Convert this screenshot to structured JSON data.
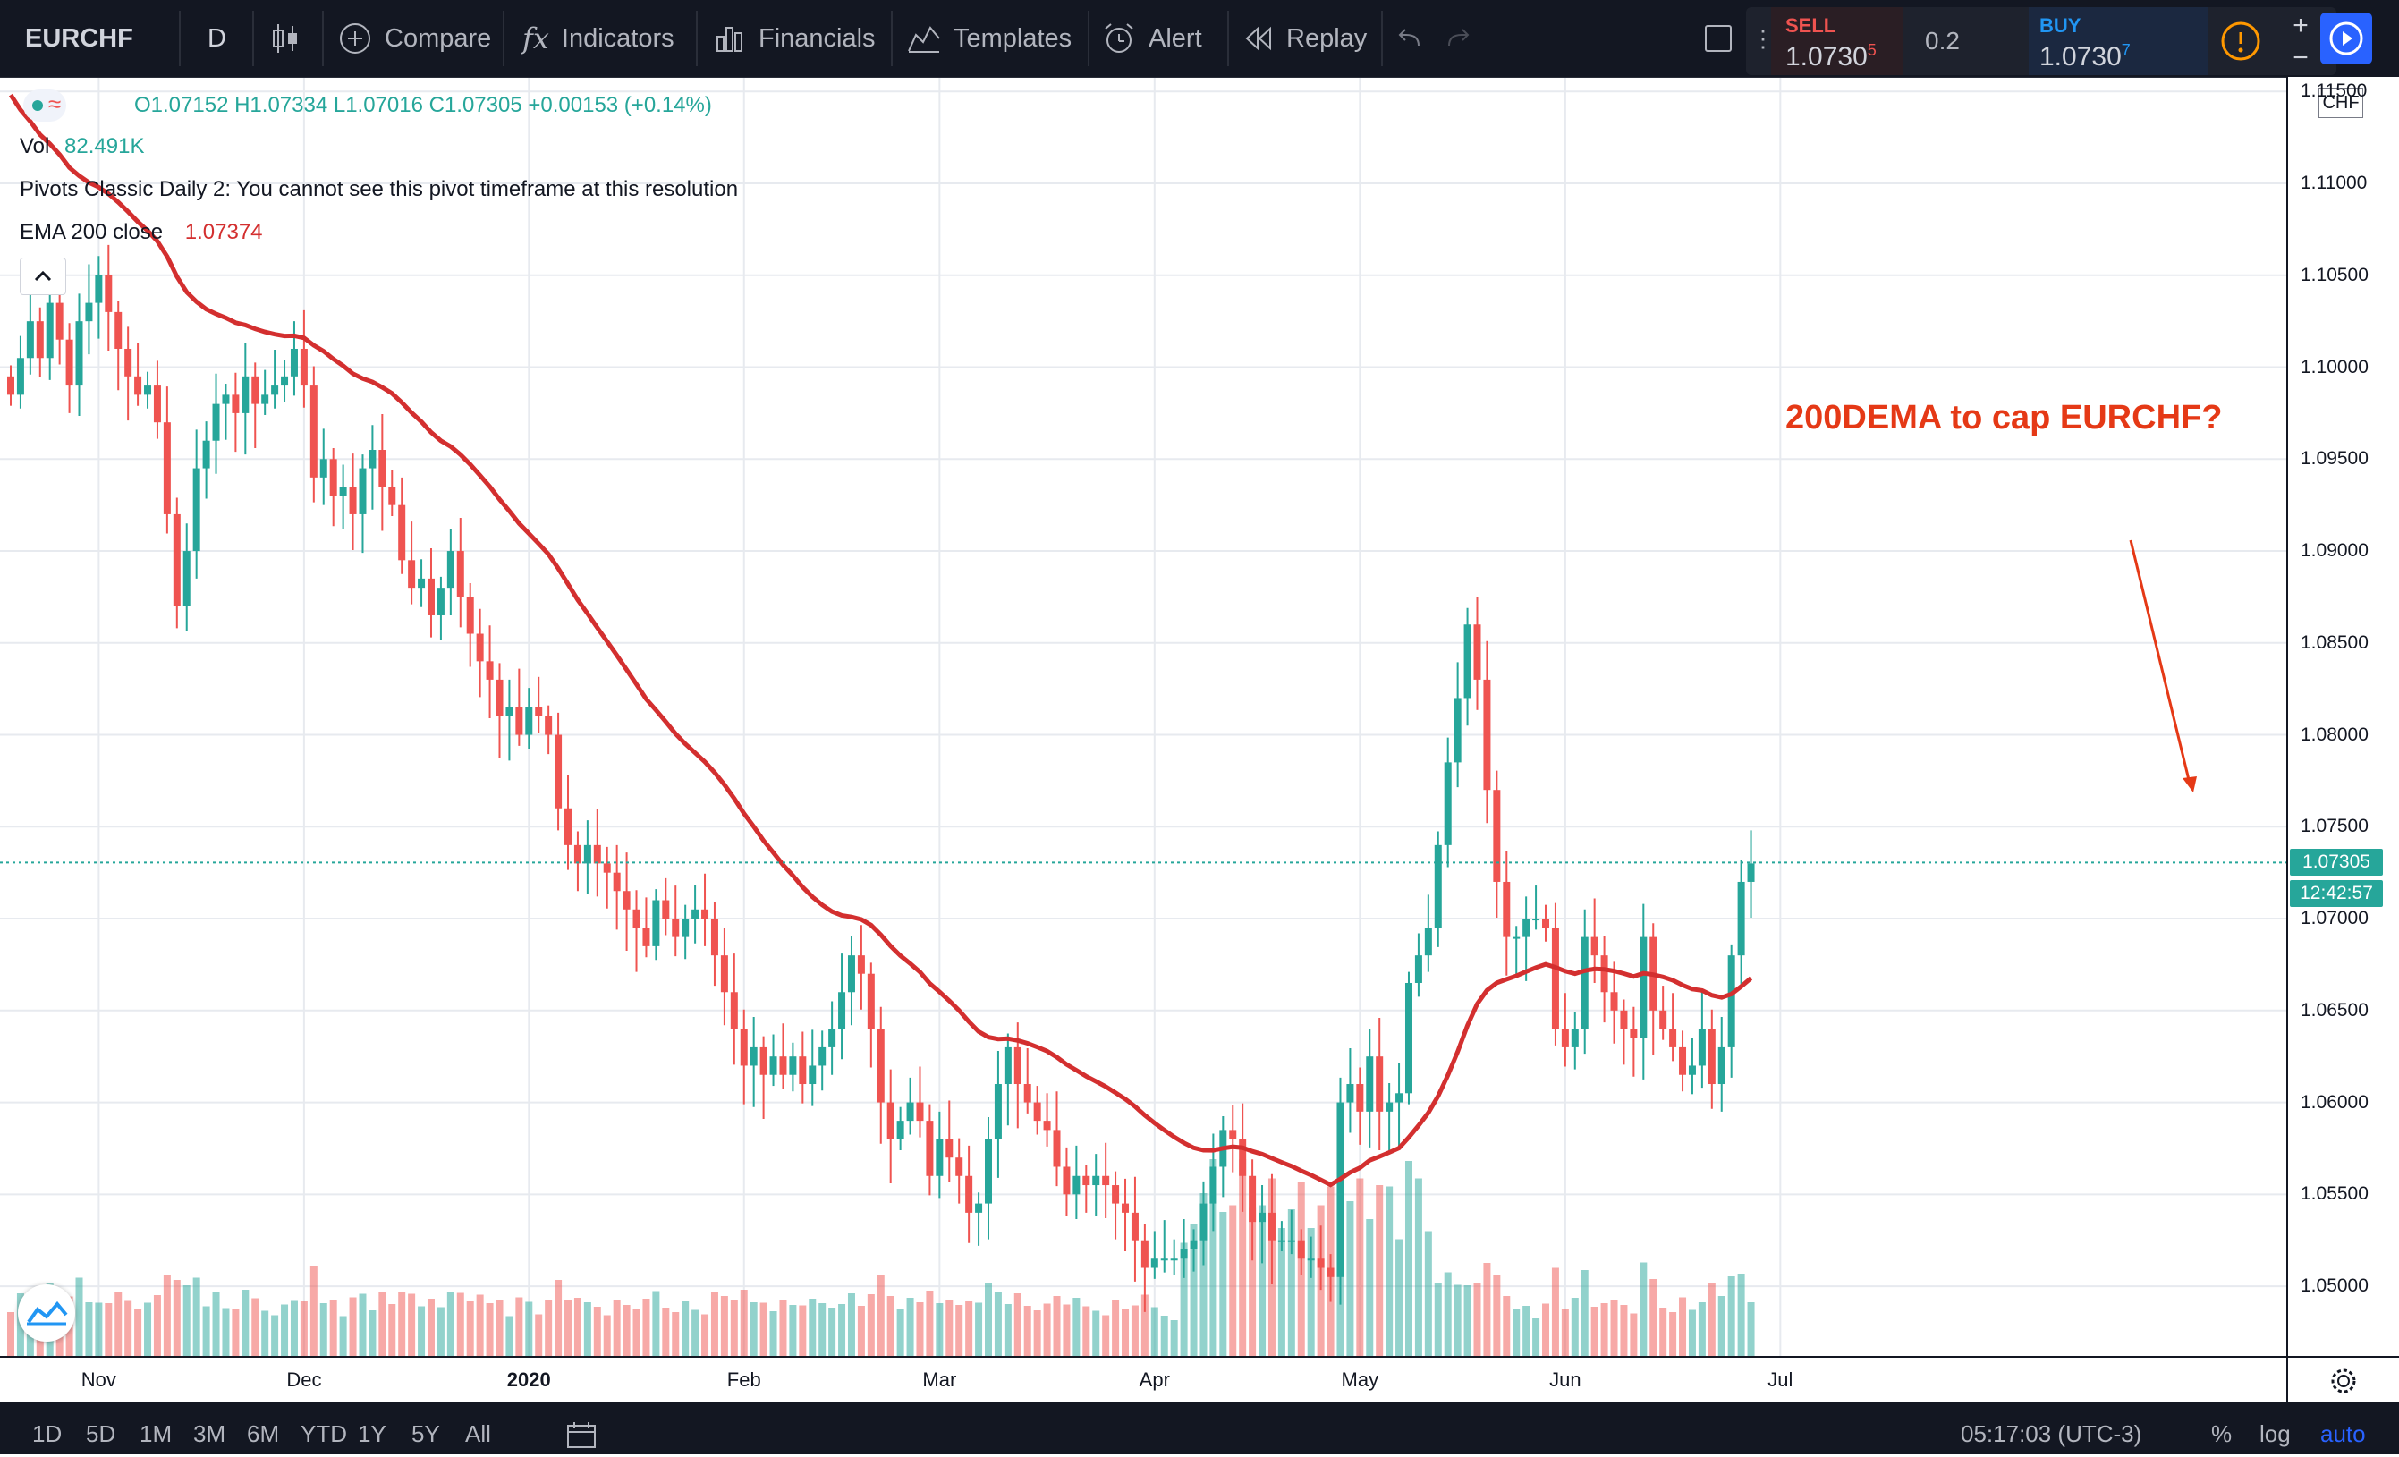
{
  "toolbar": {
    "symbol": "EURCHF",
    "interval": "D",
    "compare": "Compare",
    "indicators": "Indicators",
    "financials": "Financials",
    "templates": "Templates",
    "alert": "Alert",
    "replay": "Replay"
  },
  "trade": {
    "sell_label": "SELL",
    "sell_price": "1.0730",
    "sell_super": "5",
    "spread": "0.2",
    "buy_label": "BUY",
    "buy_price": "1.0730",
    "buy_super": "7"
  },
  "legend": {
    "ohlc": "O1.07152 H1.07334 L1.07016 C1.07305 +0.00153 (+0.14%)",
    "vol_label": "Vol",
    "vol_value": "82.491K",
    "pivots": "Pivots Classic Daily 2: You cannot see this pivot timeframe at this resolution",
    "ema_label": "EMA 200 close",
    "ema_value": "1.07374"
  },
  "price_scale": {
    "currency": "CHF",
    "last_price": "1.07305",
    "countdown": "12:42:57"
  },
  "annotation": "200DEMA to cap EURCHF?",
  "bottom": {
    "ranges": [
      "1D",
      "5D",
      "1M",
      "3M",
      "6M",
      "YTD",
      "1Y",
      "5Y",
      "All"
    ],
    "clock": "05:17:03 (UTC-3)",
    "percent": "%",
    "log": "log",
    "auto": "auto"
  },
  "colors": {
    "up": "#26a69a",
    "down": "#ef5350",
    "ema": "#d32f2f",
    "annotation": "#e53916"
  },
  "chart_data": {
    "type": "candlestick",
    "title": "EURCHF",
    "yticks": [
      "1.05000",
      "1.05500",
      "1.06000",
      "1.06500",
      "1.07000",
      "1.07500",
      "1.08000",
      "1.08500",
      "1.09000",
      "1.09500",
      "1.10000",
      "1.10500",
      "1.11000",
      "1.11500"
    ],
    "ylim": [
      1.0465,
      1.1155
    ],
    "xticks": [
      {
        "label": "Nov",
        "i": 9,
        "bold": false
      },
      {
        "label": "Dec",
        "i": 30,
        "bold": false
      },
      {
        "label": "2020",
        "i": 53,
        "bold": true
      },
      {
        "label": "Feb",
        "i": 75,
        "bold": false
      },
      {
        "label": "Mar",
        "i": 95,
        "bold": false
      },
      {
        "label": "Apr",
        "i": 117,
        "bold": false
      },
      {
        "label": "May",
        "i": 138,
        "bold": false
      },
      {
        "label": "Jun",
        "i": 159,
        "bold": false
      },
      {
        "label": "Jul",
        "i": 181,
        "bold": false
      }
    ],
    "closes": [
      1.0985,
      1.1005,
      1.1025,
      1.1005,
      1.1035,
      1.1015,
      1.099,
      1.1025,
      1.1035,
      1.105,
      1.103,
      1.101,
      1.0995,
      1.0985,
      1.099,
      1.097,
      1.092,
      1.087,
      1.09,
      1.0945,
      1.096,
      1.098,
      1.0985,
      1.0975,
      1.0995,
      1.098,
      1.0985,
      1.099,
      1.0995,
      1.101,
      1.099,
      1.094,
      1.095,
      1.093,
      1.0935,
      1.092,
      1.0945,
      1.0955,
      1.0935,
      1.0925,
      1.0895,
      1.088,
      1.0885,
      1.0865,
      1.088,
      1.09,
      1.0875,
      1.0855,
      1.084,
      1.083,
      1.081,
      1.0815,
      1.08,
      1.0815,
      1.081,
      1.08,
      1.076,
      1.074,
      1.073,
      1.074,
      1.073,
      1.0725,
      1.0715,
      1.0705,
      1.0695,
      1.0685,
      1.071,
      1.07,
      1.069,
      1.07,
      1.0705,
      1.07,
      1.068,
      1.066,
      1.064,
      1.062,
      1.063,
      1.0615,
      1.0625,
      1.0615,
      1.0625,
      1.061,
      1.062,
      1.063,
      1.064,
      1.066,
      1.068,
      1.067,
      1.064,
      1.06,
      1.058,
      1.059,
      1.06,
      1.059,
      1.056,
      1.058,
      1.057,
      1.056,
      1.054,
      1.0545,
      1.058,
      1.061,
      1.063,
      1.061,
      1.06,
      1.059,
      1.0585,
      1.0565,
      1.055,
      1.056,
      1.0555,
      1.056,
      1.0555,
      1.0545,
      1.054,
      1.0525,
      1.051,
      1.0515,
      1.0515,
      1.0515,
      1.052,
      1.0525,
      1.0545,
      1.0565,
      1.0585,
      1.058,
      1.056,
      1.0535,
      1.054,
      1.0525,
      1.0525,
      1.0525,
      1.0515,
      1.0515,
      1.051,
      1.0505,
      1.06,
      1.061,
      1.0595,
      1.0625,
      1.0595,
      1.06,
      1.0605,
      1.0665,
      1.068,
      1.0695,
      1.074,
      1.0785,
      1.082,
      1.086,
      1.083,
      1.077,
      1.072,
      1.069,
      1.069,
      1.07,
      1.07,
      1.0695,
      1.064,
      1.063,
      1.064,
      1.069,
      1.068,
      1.066,
      1.065,
      1.064,
      1.0635,
      1.069,
      1.065,
      1.064,
      1.063,
      1.0615,
      1.062,
      1.064,
      1.061,
      1.063,
      1.068,
      1.072,
      1.073
    ]
  }
}
